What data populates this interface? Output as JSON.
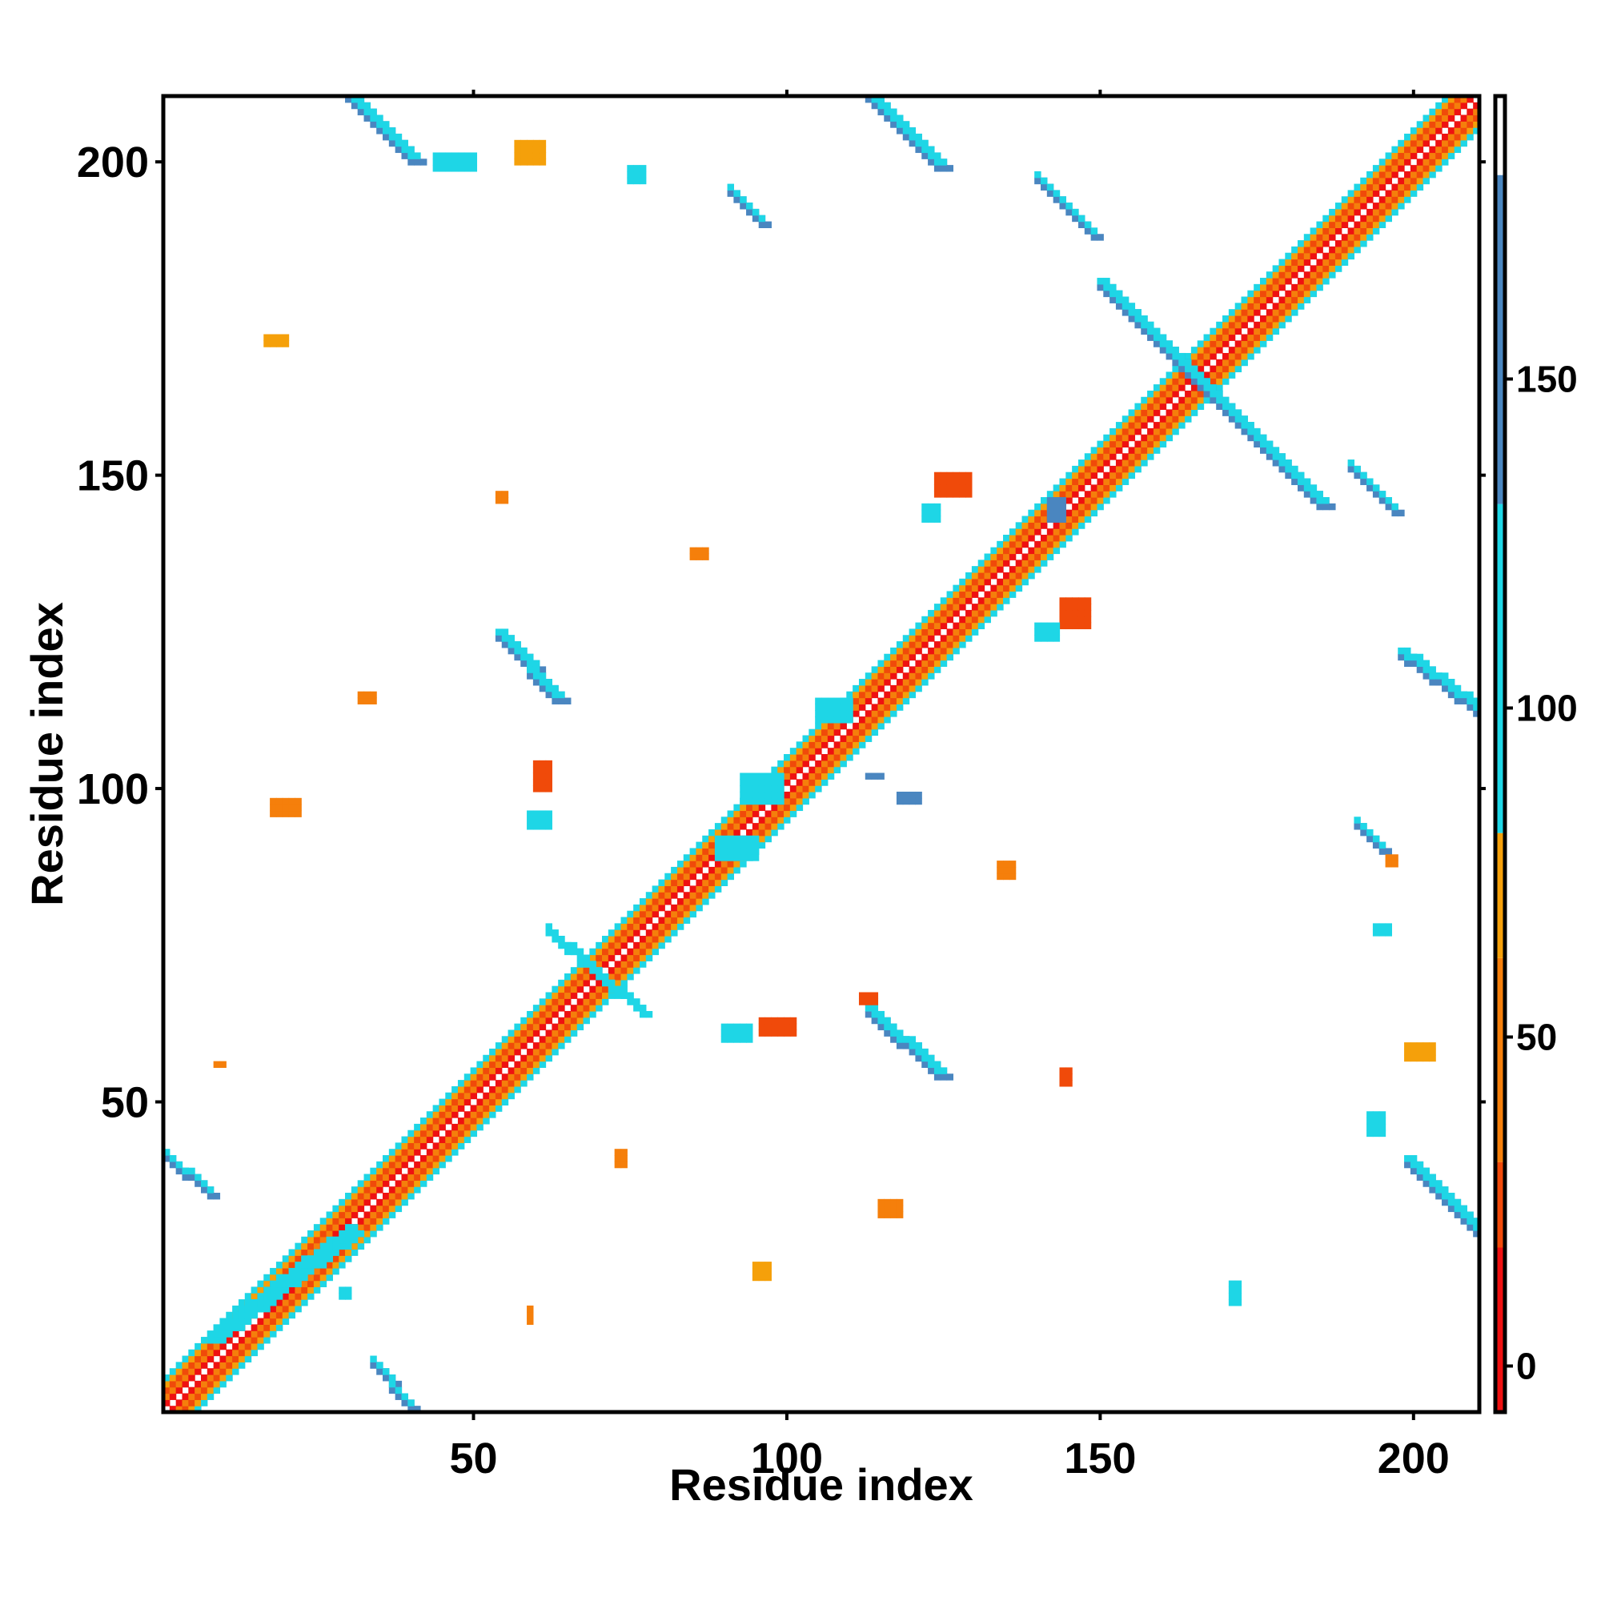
{
  "chart_data": {
    "type": "heatmap",
    "title": "",
    "xlabel": "Residue index",
    "ylabel": "Residue index",
    "xlim": [
      1,
      210
    ],
    "ylim": [
      1,
      210
    ],
    "x_ticks": [
      50,
      100,
      150,
      200
    ],
    "y_ticks": [
      50,
      100,
      150,
      200
    ],
    "x_tick_labels": [
      "50",
      "100",
      "150",
      "200"
    ],
    "y_tick_labels": [
      "50",
      "100",
      "150",
      "200"
    ],
    "colorbar": {
      "range": [
        -7,
        193
      ],
      "ticks": [
        0,
        50,
        100,
        150
      ],
      "tick_labels": [
        "0",
        "50",
        "100",
        "150"
      ],
      "bands": [
        {
          "from": -7,
          "to": 18,
          "color": "#ee1111"
        },
        {
          "from": 18,
          "to": 31,
          "color": "#f04a0a"
        },
        {
          "from": 31,
          "to": 62,
          "color": "#f57f0b"
        },
        {
          "from": 62,
          "to": 81,
          "color": "#f5a00a"
        },
        {
          "from": 81,
          "to": 131,
          "color": "#1ed6e6"
        },
        {
          "from": 131,
          "to": 181,
          "color": "#4a86c0"
        },
        {
          "from": 181,
          "to": 193,
          "color": "#ffffff"
        }
      ]
    },
    "grid": false,
    "contacts": {
      "diagonal": {
        "from": 1,
        "to": 210
      },
      "segments": [
        {
          "x1": 30,
          "y1": 210,
          "x2": 40,
          "y2": 200,
          "width": 3,
          "color": "#4a86c0"
        },
        {
          "x1": 113,
          "y1": 210,
          "x2": 124,
          "y2": 199,
          "width": 3,
          "color": "#4a86c0"
        },
        {
          "x1": 140,
          "y1": 197,
          "x2": 149,
          "y2": 188,
          "width": 2,
          "color": "#4a86c0"
        },
        {
          "x1": 91,
          "y1": 195,
          "x2": 96,
          "y2": 190,
          "width": 2,
          "color": "#4a86c0"
        },
        {
          "x1": 150,
          "y1": 180,
          "x2": 185,
          "y2": 145,
          "width": 3,
          "color": "#4a86c0"
        },
        {
          "x1": 190,
          "y1": 151,
          "x2": 197,
          "y2": 144,
          "width": 2,
          "color": "#4a86c0"
        },
        {
          "x1": 54,
          "y1": 124,
          "x2": 63,
          "y2": 114,
          "width": 3,
          "color": "#4a86c0"
        },
        {
          "x1": 198,
          "y1": 121,
          "x2": 210,
          "y2": 112,
          "width": 3,
          "color": "#4a86c0"
        },
        {
          "x1": 113,
          "y1": 64,
          "x2": 124,
          "y2": 54,
          "width": 3,
          "color": "#4a86c0"
        },
        {
          "x1": 1,
          "y1": 41,
          "x2": 8,
          "y2": 35,
          "width": 2,
          "color": "#4a86c0"
        },
        {
          "x1": 199,
          "y1": 40,
          "x2": 210,
          "y2": 29,
          "width": 3,
          "color": "#4a86c0"
        },
        {
          "x1": 34,
          "y1": 8,
          "x2": 40,
          "y2": 1,
          "width": 2,
          "color": "#4a86c0"
        },
        {
          "x1": 191,
          "y1": 94,
          "x2": 195,
          "y2": 90,
          "width": 2,
          "color": "#4a86c0"
        },
        {
          "x1": 62,
          "y1": 77,
          "x2": 77,
          "y2": 64,
          "width": 2,
          "color": "#1ed6e6"
        },
        {
          "x1": 8,
          "y1": 12,
          "x2": 30,
          "y2": 29,
          "width": 3,
          "color": "#1ed6e6"
        }
      ],
      "patches": [
        {
          "x": 44,
          "y": 199,
          "w": 7,
          "h": 3,
          "color": "#1ed6e6"
        },
        {
          "x": 57,
          "y": 200,
          "w": 5,
          "h": 4,
          "color": "#f5a00a"
        },
        {
          "x": 75,
          "y": 197,
          "w": 3,
          "h": 3,
          "color": "#1ed6e6"
        },
        {
          "x": 17,
          "y": 171,
          "w": 4,
          "h": 2,
          "color": "#f5a00a"
        },
        {
          "x": 54,
          "y": 146,
          "w": 2,
          "h": 2,
          "color": "#f57f0b"
        },
        {
          "x": 85,
          "y": 137,
          "w": 3,
          "h": 2,
          "color": "#f57f0b"
        },
        {
          "x": 124,
          "y": 147,
          "w": 6,
          "h": 4,
          "color": "#f04a0a"
        },
        {
          "x": 122,
          "y": 143,
          "w": 3,
          "h": 3,
          "color": "#1ed6e6"
        },
        {
          "x": 142,
          "y": 143,
          "w": 3,
          "h": 4,
          "color": "#4a86c0"
        },
        {
          "x": 144,
          "y": 126,
          "w": 5,
          "h": 5,
          "color": "#f04a0a"
        },
        {
          "x": 140,
          "y": 124,
          "w": 4,
          "h": 3,
          "color": "#1ed6e6"
        },
        {
          "x": 60,
          "y": 100,
          "w": 3,
          "h": 5,
          "color": "#f04a0a"
        },
        {
          "x": 59,
          "y": 94,
          "w": 4,
          "h": 3,
          "color": "#1ed6e6"
        },
        {
          "x": 18,
          "y": 96,
          "w": 5,
          "h": 3,
          "color": "#f57f0b"
        },
        {
          "x": 89,
          "y": 89,
          "w": 7,
          "h": 4,
          "color": "#1ed6e6"
        },
        {
          "x": 93,
          "y": 98,
          "w": 7,
          "h": 5,
          "color": "#1ed6e6"
        },
        {
          "x": 105,
          "y": 111,
          "w": 6,
          "h": 4,
          "color": "#1ed6e6"
        },
        {
          "x": 134,
          "y": 86,
          "w": 3,
          "h": 3,
          "color": "#f57f0b"
        },
        {
          "x": 90,
          "y": 60,
          "w": 5,
          "h": 3,
          "color": "#1ed6e6"
        },
        {
          "x": 96,
          "y": 61,
          "w": 6,
          "h": 3,
          "color": "#f04a0a"
        },
        {
          "x": 112,
          "y": 66,
          "w": 3,
          "h": 2,
          "color": "#f04a0a"
        },
        {
          "x": 199,
          "y": 57,
          "w": 5,
          "h": 3,
          "color": "#f5a00a"
        },
        {
          "x": 194,
          "y": 77,
          "w": 3,
          "h": 2,
          "color": "#1ed6e6"
        },
        {
          "x": 144,
          "y": 53,
          "w": 2,
          "h": 3,
          "color": "#f04a0a"
        },
        {
          "x": 95,
          "y": 22,
          "w": 3,
          "h": 3,
          "color": "#f5a00a"
        },
        {
          "x": 171,
          "y": 18,
          "w": 2,
          "h": 4,
          "color": "#1ed6e6"
        },
        {
          "x": 59,
          "y": 15,
          "w": 1,
          "h": 3,
          "color": "#f57f0b"
        },
        {
          "x": 29,
          "y": 19,
          "w": 2,
          "h": 2,
          "color": "#1ed6e6"
        },
        {
          "x": 193,
          "y": 45,
          "w": 3,
          "h": 4,
          "color": "#1ed6e6"
        },
        {
          "x": 115,
          "y": 32,
          "w": 4,
          "h": 3,
          "color": "#f57f0b"
        },
        {
          "x": 118,
          "y": 98,
          "w": 4,
          "h": 2,
          "color": "#4a86c0"
        },
        {
          "x": 113,
          "y": 102,
          "w": 3,
          "h": 1,
          "color": "#4a86c0"
        },
        {
          "x": 196,
          "y": 88,
          "w": 2,
          "h": 2,
          "color": "#f57f0b"
        },
        {
          "x": 9,
          "y": 56,
          "w": 2,
          "h": 1,
          "color": "#f57f0b"
        },
        {
          "x": 32,
          "y": 114,
          "w": 3,
          "h": 2,
          "color": "#f57f0b"
        },
        {
          "x": 73,
          "y": 40,
          "w": 2,
          "h": 3,
          "color": "#f57f0b"
        }
      ]
    }
  },
  "colors": {
    "red": "#ee1111",
    "red_orange": "#f04a0a",
    "orange": "#f57f0b",
    "light_orange": "#f5a00a",
    "cyan": "#1ed6e6",
    "steel_blue": "#4a86c0",
    "frame": "#000000"
  }
}
